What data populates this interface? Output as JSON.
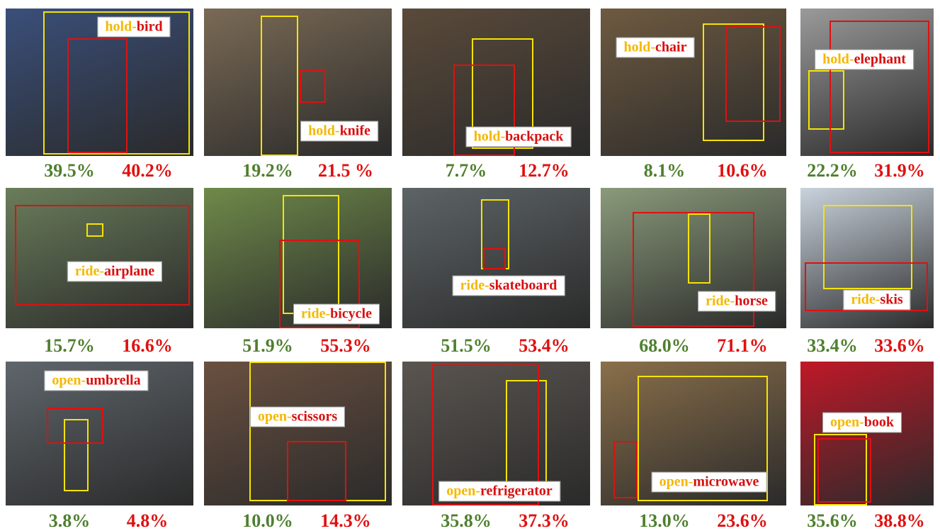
{
  "figure": {
    "cells": [
      {
        "verb": "hold-",
        "object": "bird",
        "baseline": "39.5%",
        "ours": "40.2%"
      },
      {
        "verb": "hold-",
        "object": "knife",
        "baseline": "19.2%",
        "ours": "21.5 %"
      },
      {
        "verb": "hold-",
        "object": "backpack",
        "baseline": "7.7%",
        "ours": "12.7%"
      },
      {
        "verb": "hold-",
        "object": "chair",
        "baseline": "8.1%",
        "ours": "10.6%"
      },
      {
        "verb": "hold-",
        "object": "elephant",
        "baseline": "22.2%",
        "ours": "31.9%"
      },
      {
        "verb": "ride-",
        "object": "airplane",
        "baseline": "15.7%",
        "ours": "16.6%"
      },
      {
        "verb": "ride-",
        "object": "bicycle",
        "baseline": "51.9%",
        "ours": "55.3%"
      },
      {
        "verb": "ride-",
        "object": "skateboard",
        "baseline": "51.5%",
        "ours": "53.4%"
      },
      {
        "verb": "ride-",
        "object": "horse",
        "baseline": "68.0%",
        "ours": "71.1%"
      },
      {
        "verb": "ride-",
        "object": "skis",
        "baseline": "33.4%",
        "ours": "33.6%"
      },
      {
        "verb": "open-",
        "object": "umbrella",
        "baseline": "3.8%",
        "ours": "4.8%"
      },
      {
        "verb": "open-",
        "object": "scissors",
        "baseline": "10.0%",
        "ours": "14.3%"
      },
      {
        "verb": "open-",
        "object": "refrigerator",
        "baseline": "35.8%",
        "ours": "37.3%"
      },
      {
        "verb": "open-",
        "object": "microwave",
        "baseline": "13.0%",
        "ours": "23.6%"
      },
      {
        "verb": "open-",
        "object": "book",
        "baseline": "35.6%",
        "ours": "38.8%"
      }
    ]
  }
}
